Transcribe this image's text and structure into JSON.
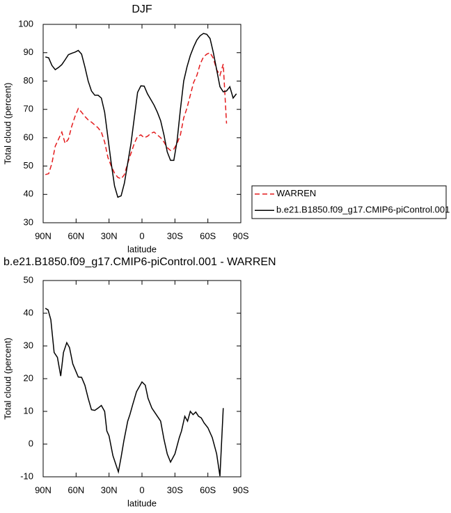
{
  "chart_data": [
    {
      "type": "line",
      "title": "DJF",
      "xlabel": "latitude",
      "ylabel": "Total cloud (percent)",
      "x": [
        88,
        85,
        82,
        79,
        76,
        73,
        70,
        67,
        64,
        61,
        58,
        55,
        52,
        49,
        46,
        43,
        40,
        37,
        34,
        31,
        28,
        25,
        22,
        19,
        16,
        13,
        10,
        7,
        4,
        1,
        -2,
        -5,
        -8,
        -11,
        -14,
        -17,
        -20,
        -23,
        -26,
        -29,
        -32,
        -35,
        -38,
        -41,
        -44,
        -47,
        -50,
        -53,
        -56,
        -59,
        -62,
        -65,
        -68,
        -71,
        -74,
        -77,
        -80,
        -83,
        -86
      ],
      "series": [
        {
          "name": "WARREN",
          "color": "#e41a1c",
          "line_style": "dashed",
          "values": [
            47,
            47.3,
            51,
            57,
            59.5,
            62,
            58,
            59.5,
            64,
            67.5,
            70.3,
            69,
            67.5,
            66.3,
            65.5,
            64.5,
            63.5,
            62,
            58.5,
            53,
            50,
            47.5,
            46,
            45.5,
            47,
            51,
            54.5,
            58,
            60.5,
            61,
            60,
            60.5,
            61.5,
            62,
            61,
            60,
            58.5,
            56.5,
            55.5,
            56,
            58,
            61,
            67,
            70.5,
            75,
            79.5,
            82,
            86,
            88.5,
            89.5,
            90,
            88,
            84,
            82,
            86,
            65,
            null,
            null,
            null
          ]
        },
        {
          "name": "b.e21.B1850.f09_g17.CMIP6-piControl.001",
          "color": "#000000",
          "line_style": "solid",
          "values": [
            88.5,
            88.2,
            85.5,
            84,
            84.8,
            85.8,
            87.5,
            89.3,
            89.8,
            90.2,
            90.8,
            89.5,
            85,
            80,
            76.5,
            75,
            75,
            74,
            69,
            60,
            51,
            43,
            39,
            39.5,
            44,
            51,
            58,
            67,
            76,
            78.3,
            78.2,
            75.5,
            73.5,
            71.5,
            69,
            66,
            61,
            55,
            52,
            52,
            59,
            70,
            80,
            85,
            89,
            92,
            94.5,
            96,
            96.8,
            96.5,
            95,
            90,
            84,
            78,
            76.2,
            76.5,
            78,
            74,
            75.5
          ]
        }
      ],
      "xlim": [
        90,
        -90
      ],
      "xticks": [
        {
          "value": 90,
          "label": "90N"
        },
        {
          "value": 60,
          "label": "60N"
        },
        {
          "value": 30,
          "label": "30N"
        },
        0,
        {
          "value": -30,
          "label": "30S"
        },
        {
          "value": -60,
          "label": "60S"
        },
        {
          "value": -90,
          "label": "90S"
        }
      ],
      "ylim": [
        30,
        100
      ],
      "yticks": [
        30,
        40,
        50,
        60,
        70,
        80,
        90,
        100
      ],
      "legend": "outside right"
    },
    {
      "type": "line",
      "title": "b.e21.B1850.f09_g17.CMIP6-piControl.001 - WARREN",
      "xlabel": "latitude",
      "ylabel": "Total cloud (percent)",
      "x": [
        88,
        85.5,
        83,
        80,
        77,
        74,
        71.5,
        68.5,
        66,
        63,
        58,
        55,
        52,
        49,
        46,
        43,
        40,
        37,
        34,
        32,
        30,
        26.5,
        24,
        21.5,
        19,
        16.5,
        13,
        11,
        8.5,
        5,
        2.5,
        0,
        -3,
        -5.5,
        -9,
        -12,
        -17,
        -20,
        -23,
        -26,
        -30,
        -34,
        -36,
        -39,
        -41.5,
        -44,
        -46.5,
        -49,
        -51.5,
        -54,
        -56.5,
        -60,
        -64,
        -68,
        -71,
        -74
      ],
      "values": [
        41.5,
        41,
        38,
        28,
        26.5,
        20.8,
        28,
        31,
        29.5,
        24.5,
        20.5,
        20.4,
        18,
        14,
        10.5,
        10.3,
        11,
        11.8,
        10,
        4,
        2.5,
        -3.5,
        -6,
        -8.5,
        -4,
        1,
        7,
        9,
        12,
        16,
        17.5,
        19,
        18,
        14,
        11,
        9.5,
        7,
        1.5,
        -3,
        -5.5,
        -3,
        2,
        4,
        8.5,
        7,
        10,
        9,
        9.8,
        8.5,
        8,
        6.5,
        5,
        2,
        -3,
        -9.8,
        11
      ],
      "color": "#000000",
      "xlim": [
        90,
        -90
      ],
      "xticks": [
        {
          "value": 90,
          "label": "90N"
        },
        {
          "value": 60,
          "label": "60N"
        },
        {
          "value": 30,
          "label": "30N"
        },
        0,
        {
          "value": -30,
          "label": "30S"
        },
        {
          "value": -60,
          "label": "60S"
        },
        {
          "value": -90,
          "label": "90S"
        }
      ],
      "ylim": [
        -10,
        50
      ],
      "yticks": [
        -10,
        0,
        10,
        20,
        30,
        40,
        50
      ]
    }
  ]
}
